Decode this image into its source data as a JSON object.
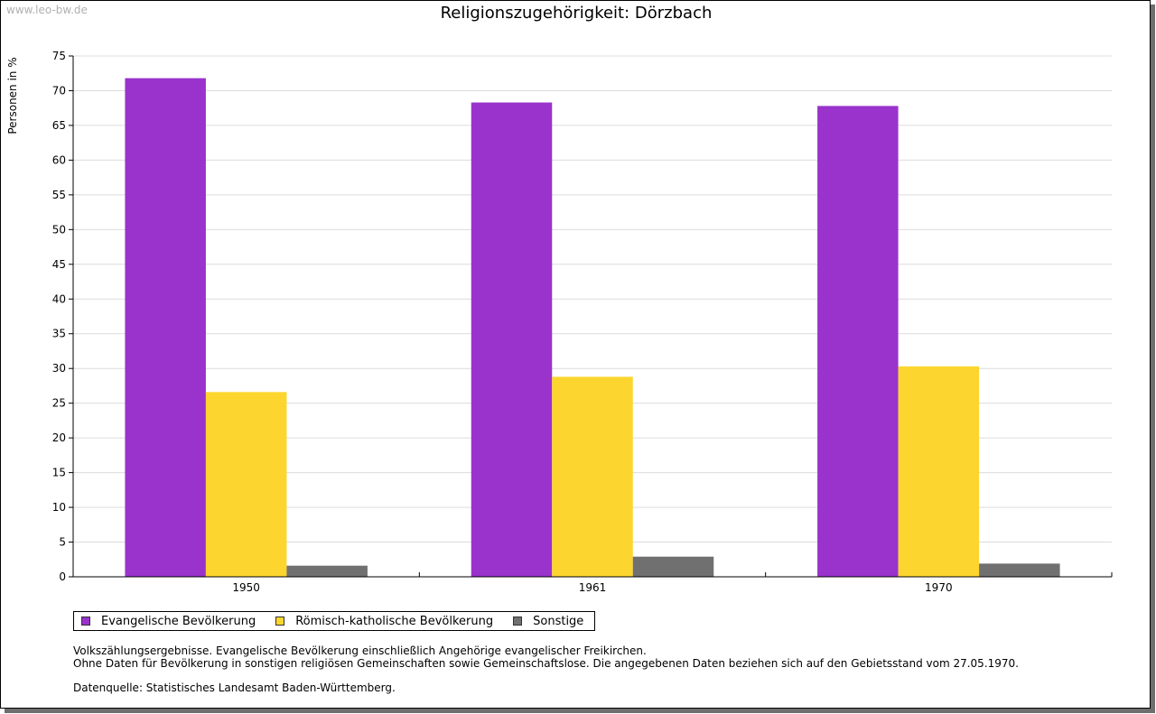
{
  "watermark": "www.leo-bw.de",
  "chart_data": {
    "type": "bar",
    "title": "Religionszugehörigkeit: Dörzbach",
    "xlabel": "",
    "ylabel": "Personen in %",
    "categories": [
      "1950",
      "1961",
      "1970"
    ],
    "series": [
      {
        "name": "Evangelische Bevölkerung",
        "color": "#9933cc",
        "values": [
          71.8,
          68.3,
          67.8
        ]
      },
      {
        "name": "Römisch-katholische Bevölkerung",
        "color": "#fcd62e",
        "values": [
          26.6,
          28.8,
          30.3
        ]
      },
      {
        "name": "Sonstige",
        "color": "#707070",
        "values": [
          1.6,
          2.9,
          1.9
        ]
      }
    ],
    "ylim": [
      0,
      75
    ],
    "yticks": [
      "0",
      "5",
      "10",
      "15",
      "20",
      "25",
      "30",
      "35",
      "40",
      "45",
      "50",
      "55",
      "60",
      "65",
      "70",
      "75"
    ],
    "grid": true,
    "legend_position": "bottom-left"
  },
  "notes": {
    "line1": "Volkszählungsergebnisse. Evangelische Bevölkerung einschließlich Angehörige evangelischer Freikirchen.",
    "line2": "Ohne Daten für Bevölkerung in sonstigen religiösen Gemeinschaften sowie Gemeinschaftslose. Die angegebenen Daten beziehen sich auf den Gebietsstand vom 27.05.1970.",
    "source": "Datenquelle: Statistisches Landesamt Baden-Württemberg."
  }
}
